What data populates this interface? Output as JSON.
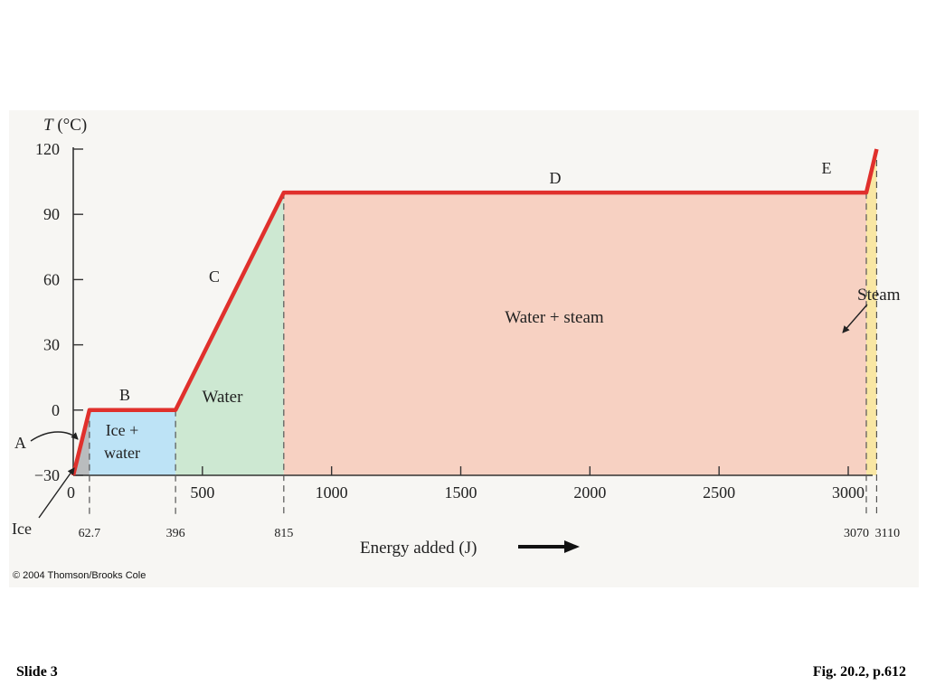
{
  "colors": {
    "curve": "#e0302c",
    "ice_fill": "#b9bcbe",
    "ice_water_fill": "#bde3f6",
    "water_fill": "#cde8d2",
    "water_steam_fill": "#f7d1c2",
    "steam_fill": "#f9e7a3",
    "axis": "#333333"
  },
  "footer": {
    "copyright": "© 2004 Thomson/Brooks Cole",
    "slide": "Slide 3",
    "figure_ref": "Fig. 20.2, p.612"
  },
  "chart_data": {
    "type": "line",
    "title": "",
    "ylabel_italic": "T",
    "ylabel_rest": " (°C)",
    "xlabel": "Energy added (J)",
    "xlim": [
      0,
      3250
    ],
    "ylim": [
      -30,
      120
    ],
    "yticks": [
      120,
      90,
      60,
      30,
      0,
      -30
    ],
    "ytick_labels": [
      "120",
      "90",
      "60",
      "30",
      "0",
      "−30"
    ],
    "xticks": [
      0,
      500,
      1000,
      1500,
      2000,
      2500,
      3000
    ],
    "xtick_labels": [
      "0",
      "500",
      "1000",
      "1500",
      "2000",
      "2500",
      "3000"
    ],
    "grid": false,
    "series": [
      {
        "x": [
          0,
          62.7,
          396,
          815,
          3070,
          3110
        ],
        "y": [
          -30,
          0,
          0,
          100,
          100,
          120
        ]
      }
    ],
    "boundaries": [
      {
        "x": 62.7,
        "label": "62.7"
      },
      {
        "x": 396,
        "label": "396"
      },
      {
        "x": 815,
        "label": "815"
      },
      {
        "x": 3070,
        "label": "3070"
      },
      {
        "x": 3110,
        "label": "3110"
      }
    ],
    "region_labels": {
      "ice_water_line1": "Ice +",
      "ice_water_line2": "water",
      "water": "Water",
      "water_steam": "Water + steam"
    },
    "segment_labels": [
      "A",
      "B",
      "C",
      "D",
      "E"
    ],
    "annotations": {
      "ice": "Ice",
      "steam": "Steam"
    }
  }
}
